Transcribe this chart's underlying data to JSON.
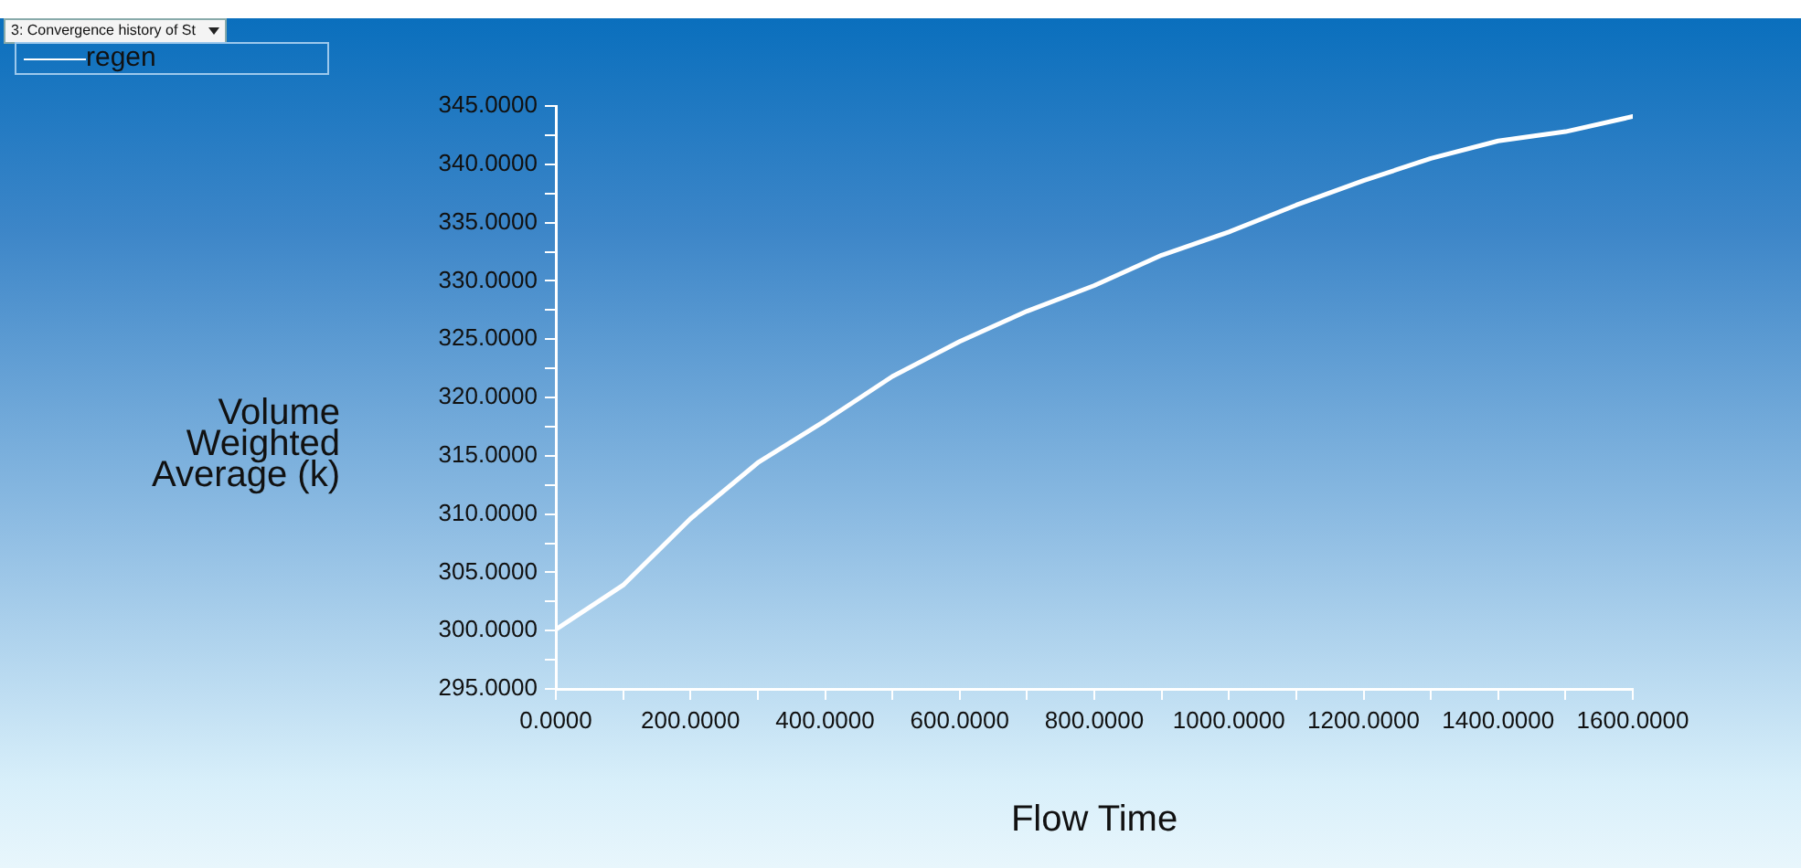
{
  "chart_data": {
    "type": "line",
    "title": "3: Convergence history of St",
    "xlabel": "Flow Time",
    "ylabel": "Volume Weighted Average (k)",
    "x": [
      0,
      100,
      200,
      300,
      400,
      500,
      600,
      700,
      800,
      900,
      1000,
      1100,
      1200,
      1300,
      1400,
      1500,
      1600
    ],
    "series": [
      {
        "name": "regen",
        "color": "#ffffff",
        "values": [
          300.1,
          303.9,
          309.6,
          314.4,
          318.0,
          321.8,
          324.8,
          327.4,
          329.6,
          332.2,
          334.2,
          336.5,
          338.6,
          340.5,
          342.0,
          342.8,
          344.1
        ]
      }
    ],
    "xlim": [
      0,
      1600
    ],
    "xticks": [
      {
        "value": 0,
        "label": "0.0000"
      },
      {
        "value": 100,
        "label": null
      },
      {
        "value": 200,
        "label": "200.0000"
      },
      {
        "value": 300,
        "label": null
      },
      {
        "value": 400,
        "label": "400.0000"
      },
      {
        "value": 500,
        "label": null
      },
      {
        "value": 600,
        "label": "600.0000"
      },
      {
        "value": 700,
        "label": null
      },
      {
        "value": 800,
        "label": "800.0000"
      },
      {
        "value": 900,
        "label": null
      },
      {
        "value": 1000,
        "label": "1000.0000"
      },
      {
        "value": 1100,
        "label": null
      },
      {
        "value": 1200,
        "label": "1200.0000"
      },
      {
        "value": 1300,
        "label": null
      },
      {
        "value": 1400,
        "label": "1400.0000"
      },
      {
        "value": 1500,
        "label": null
      },
      {
        "value": 1600,
        "label": "1600.0000"
      }
    ],
    "ylim": [
      295,
      345
    ],
    "yticks": [
      {
        "value": 295,
        "label": "295.0000"
      },
      {
        "value": 297.5,
        "label": null
      },
      {
        "value": 300,
        "label": "300.0000"
      },
      {
        "value": 302.5,
        "label": null
      },
      {
        "value": 305,
        "label": "305.0000"
      },
      {
        "value": 307.5,
        "label": null
      },
      {
        "value": 310,
        "label": "310.0000"
      },
      {
        "value": 312.5,
        "label": null
      },
      {
        "value": 315,
        "label": "315.0000"
      },
      {
        "value": 317.5,
        "label": null
      },
      {
        "value": 320,
        "label": "320.0000"
      },
      {
        "value": 322.5,
        "label": null
      },
      {
        "value": 325,
        "label": "325.0000"
      },
      {
        "value": 327.5,
        "label": null
      },
      {
        "value": 330,
        "label": "330.0000"
      },
      {
        "value": 332.5,
        "label": null
      },
      {
        "value": 335,
        "label": "335.0000"
      },
      {
        "value": 337.5,
        "label": null
      },
      {
        "value": 340,
        "label": "340.0000"
      },
      {
        "value": 342.5,
        "label": null
      },
      {
        "value": 345,
        "label": "345.0000"
      }
    ],
    "grid": false,
    "legend": "top left",
    "marker": "none",
    "line_style": "solid"
  }
}
